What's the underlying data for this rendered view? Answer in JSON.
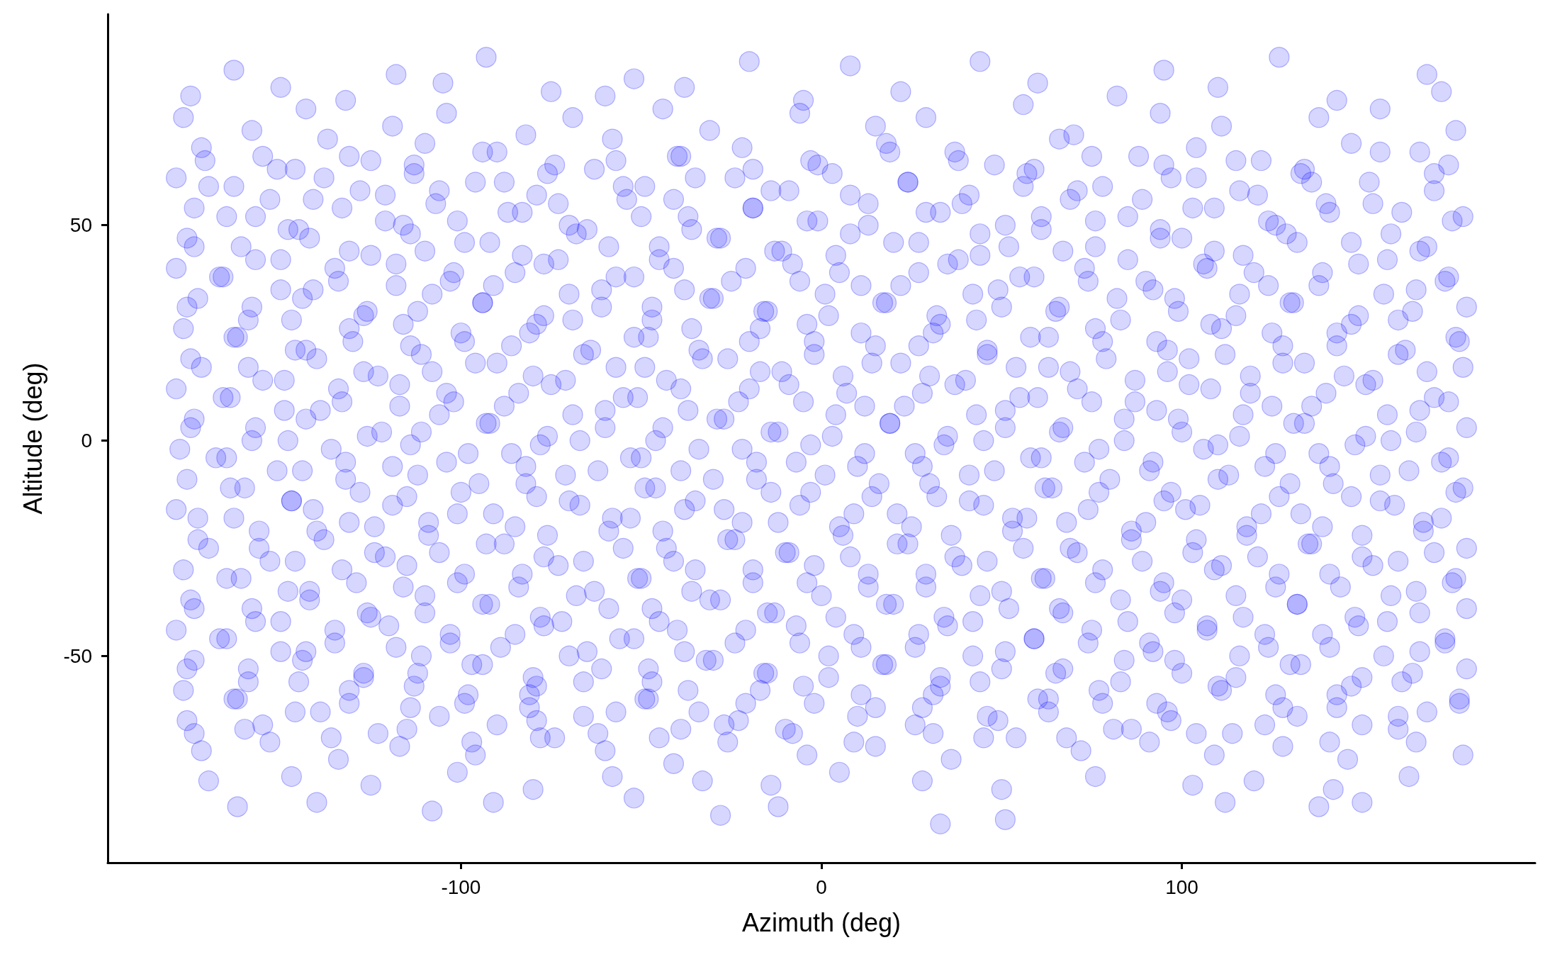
{
  "chart_data": {
    "type": "scatter",
    "xlabel": "Azimuth (deg)",
    "ylabel": "Altitude (deg)",
    "color": "#0000ff",
    "marker": "circle",
    "xlim": [
      -198,
      198
    ],
    "ylim": [
      -98,
      99
    ],
    "xticks": [
      -100,
      0,
      100
    ],
    "yticks": [
      -50,
      0,
      50
    ],
    "x": [
      -163,
      -118,
      -93,
      -52,
      -20,
      8,
      44,
      95,
      127,
      168,
      -175,
      -150,
      -132,
      -105,
      -75,
      -60,
      -38,
      -5,
      22,
      60,
      82,
      110,
      143,
      172,
      -177,
      -158,
      -143,
      -119,
      -104,
      -82,
      -69,
      -44,
      -31,
      -6,
      15,
      29,
      56,
      70,
      94,
      111,
      138,
      155,
      176,
      -172,
      -155,
      -137,
      -125,
      -110,
      -90,
      -74,
      -58,
      -40,
      -22,
      -3,
      18,
      37,
      48,
      66,
      88,
      104,
      122,
      147,
      166,
      -179,
      -163,
      -146,
      -128,
      -113,
      -96,
      -79,
      -63,
      -49,
      -35,
      -14,
      3,
      24,
      41,
      59,
      78,
      97,
      116,
      133,
      152,
      170,
      -174,
      -157,
      -141,
      -121,
      -107,
      -87,
      -70,
      -54,
      -37,
      -19,
      -1,
      13,
      33,
      51,
      69,
      85,
      103,
      124,
      140,
      161,
      178,
      -176,
      -161,
      -145,
      -131,
      -114,
      -99,
      -83,
      -65,
      -45,
      -29,
      -11,
      8,
      27,
      44,
      61,
      76,
      94,
      109,
      129,
      147,
      168,
      -179,
      -166,
      -150,
      -134,
      -118,
      -102,
      -91,
      -73,
      -57,
      -41,
      -25,
      -8,
      5,
      22,
      38,
      55,
      73,
      90,
      106,
      120,
      138,
      157,
      174,
      -173,
      -158,
      -141,
      -126,
      -108,
      -94,
      -77,
      -61,
      -47,
      -31,
      -16,
      1,
      17,
      32,
      49,
      66,
      82,
      99,
      116,
      131,
      149,
      165,
      179,
      -177,
      -162,
      -147,
      -130,
      -116,
      -100,
      -86,
      -69,
      -52,
      -36,
      -20,
      -4,
      11,
      27,
      43,
      58,
      76,
      93,
      108,
      125,
      143,
      160,
      176,
      -175,
      -159,
      -143,
      -127,
      -111,
      -96,
      -80,
      -64,
      -49,
      -33,
      -17,
      -2,
      14,
      30,
      46,
      63,
      79,
      96,
      112,
      128,
      145,
      162,
      178,
      -179,
      -164,
      -149,
      -133,
      -117,
      -104,
      -88,
      -71,
      -55,
      -39,
      -23,
      -9,
      7,
      23,
      40,
      55,
      71,
      87,
      102,
      119,
      136,
      153,
      170,
      -174,
      -157,
      -139,
      -122,
      -106,
      -92,
      -76,
      -60,
      -44,
      -27,
      -12,
      4,
      19,
      35,
      51,
      67,
      84,
      100,
      117,
      134,
      151,
      166,
      179,
      -178,
      -165,
      -148,
      -132,
      -114,
      -98,
      -82,
      -67,
      -50,
      -34,
      -18,
      -3,
      12,
      28,
      45,
      61,
      77,
      92,
      110,
      126,
      141,
      158,
      174,
      -176,
      -160,
      -144,
      -128,
      -112,
      -95,
      -79,
      -62,
      -46,
      -30,
      -14,
      1,
      16,
      32,
      48,
      64,
      80,
      97,
      113,
      130,
      147,
      163,
      178,
      -179,
      -163,
      -147,
      -131,
      -119,
      -101,
      -85,
      -70,
      -53,
      -38,
      -22,
      -6,
      9,
      25,
      41,
      57,
      74,
      90,
      105,
      122,
      139,
      155,
      172,
      -173,
      -156,
      -140,
      -124,
      -109,
      -93,
      -77,
      -59,
      -43,
      -26,
      -10,
      6,
      21,
      37,
      53,
      69,
      86,
      103,
      118,
      135,
      150,
      167,
      179,
      -177,
      -161,
      -146,
      -129,
      -115,
      -99,
      -84,
      -66,
      -51,
      -35,
      -19,
      -2,
      13,
      29,
      46,
      62,
      78,
      95,
      111,
      127,
      144,
      160,
      176,
      -175,
      -158,
      -142,
      -126,
      -110,
      -94,
      -78,
      -63,
      -47,
      -31,
      -15,
      0,
      18,
      34,
      50,
      66,
      83,
      98,
      115,
      132,
      148,
      165,
      179,
      -179,
      -165,
      -150,
      -135,
      -120,
      -103,
      -89,
      -72,
      -56,
      -40,
      -24,
      -7,
      9,
      26,
      42,
      59,
      75,
      91,
      107,
      123,
      141,
      157,
      173,
      -174,
      -159,
      -143,
      -127,
      -111,
      -97,
      -80,
      -65,
      -48,
      -32,
      -16,
      2,
      17,
      33,
      51,
      67,
      84,
      100,
      116,
      133,
      150,
      166,
      179,
      -177,
      -162,
      -145,
      -131,
      -113,
      -98,
      -81,
      -66,
      -49,
      -37,
      -21,
      -5,
      11,
      28,
      44,
      60,
      77,
      93,
      110,
      126,
      143,
      161,
      177,
      -176,
      -160,
      -139,
      -123,
      -106,
      -90,
      -74,
      -57,
      -39,
      -23,
      -8,
      10,
      26,
      45,
      63,
      81,
      97,
      114,
      132,
      150,
      168,
      -172,
      -153,
      -134,
      -117,
      -96,
      -78,
      -60,
      -41,
      -26,
      -4,
      15,
      36,
      54,
      72,
      91,
      109,
      128,
      146,
      165,
      178,
      -170,
      -147,
      -125,
      -101,
      -80,
      -58,
      -33,
      -14,
      5,
      28,
      50,
      76,
      103,
      120,
      142,
      163,
      -162,
      -140,
      -108,
      -91,
      -52,
      -28,
      -12,
      33,
      51,
      112,
      138,
      150,
      -171,
      -151,
      -131,
      -113,
      -94,
      -76,
      -57,
      -39,
      -19,
      -1,
      19,
      38,
      57,
      75,
      95,
      115,
      134,
      155,
      174,
      -170,
      -153,
      -138,
      -121,
      -106,
      -88,
      -73,
      -55,
      -41,
      -24,
      -9,
      8,
      24,
      39,
      56,
      71,
      89,
      104,
      121,
      136,
      153,
      170,
      -165,
      -148,
      -133,
      -116,
      -101,
      -83,
      -68,
      -50,
      -36,
      -19,
      -4,
      13,
      29,
      44,
      61,
      76,
      94,
      109,
      126,
      141,
      158,
      175,
      -174,
      -157,
      -142,
      -125,
      -110,
      -92,
      -77,
      -59,
      -45,
      -28,
      -13,
      4,
      20,
      35,
      52,
      67,
      85,
      100,
      117,
      132,
      149,
      166,
      -167,
      -150,
      -135,
      -118,
      -103,
      -85,
      -70,
      -52,
      -38,
      -21,
      -6,
      11,
      27,
      42,
      59,
      74,
      92,
      107,
      124,
      139,
      156,
      173,
      -176,
      -159,
      -144,
      -127,
      -112,
      -94,
      -79,
      -61,
      -47,
      -30,
      -15,
      2,
      18,
      33,
      50,
      65,
      83,
      98,
      115,
      130,
      147,
      164,
      -163,
      -146,
      -131,
      -114,
      -99,
      -81,
      -66,
      -48,
      -34,
      -17,
      -2,
      15,
      31,
      46,
      63,
      78,
      96,
      111,
      128,
      143,
      160,
      177,
      -172,
      -155,
      -140,
      -123,
      -108,
      -90,
      -75,
      -57,
      -43,
      -26,
      -11,
      6,
      22,
      37,
      54,
      69,
      87,
      102,
      119,
      134,
      151,
      168,
      -166,
      -149,
      -134,
      -117,
      -102,
      -84,
      -69,
      -51,
      -37,
      -20,
      -5,
      12,
      28,
      43,
      60,
      75,
      93,
      108,
      125,
      140,
      157,
      174,
      -175,
      -158,
      -143,
      -126,
      -111,
      -93,
      -78,
      -60,
      -46,
      -29,
      -14,
      3,
      19,
      34,
      51,
      66,
      84,
      99,
      116,
      131,
      148,
      165,
      -168,
      -151,
      -136,
      -119,
      -104,
      -86,
      -71,
      -53,
      -39,
      -22,
      -7,
      10,
      26,
      41,
      58,
      73,
      91,
      106,
      123,
      138,
      155,
      172,
      -164,
      -147,
      -132,
      -115,
      -100,
      -82,
      -67,
      -49,
      -35,
      -18,
      -3,
      14,
      30,
      45,
      62,
      77,
      95,
      110,
      127,
      142,
      159,
      176,
      -173,
      -156,
      -141,
      -124,
      -109,
      -91,
      -76,
      -58,
      -44,
      -27,
      -12,
      5,
      21,
      36,
      53,
      68,
      86,
      101,
      118,
      133,
      150,
      167,
      -170,
      -153,
      -138,
      -121,
      -106,
      -88,
      -73,
      -55,
      -41,
      -24,
      -9,
      8,
      24,
      39,
      56,
      71,
      89,
      104,
      121,
      136,
      153,
      170,
      -165,
      -148,
      -133,
      -116,
      -101,
      -83,
      -68,
      -50,
      -36,
      -19,
      -4,
      13,
      29,
      44,
      61,
      76,
      94,
      109,
      126,
      141,
      158,
      175,
      -174,
      -157,
      -142,
      -125,
      -110,
      -92,
      -77,
      -59,
      -45,
      -28,
      -13,
      4,
      20,
      35,
      52,
      67,
      85,
      100,
      117,
      132,
      149,
      166,
      -167,
      -150,
      -135,
      -118,
      -103,
      -85,
      -70,
      -52,
      -38,
      -21,
      -6,
      11,
      27,
      42,
      59,
      74,
      92,
      107,
      124,
      139,
      156,
      173,
      -176,
      -159,
      -144,
      -127,
      -112,
      -94,
      -79,
      -61,
      -47,
      -30,
      -15,
      2,
      18,
      33,
      50,
      65,
      83,
      98,
      115,
      130,
      147,
      164,
      -163,
      -146,
      -131,
      -114,
      -99,
      -81,
      -66,
      -48,
      -34,
      -17,
      -2,
      15,
      31,
      46,
      63,
      78,
      96,
      111,
      128,
      143,
      160,
      177,
      -174,
      -155,
      -136,
      -115,
      -97,
      -79,
      -62,
      -45,
      -27,
      -10,
      9,
      31,
      49,
      68,
      86,
      104,
      123,
      141,
      160
    ],
    "values": [
      86,
      85,
      89,
      84,
      88,
      87,
      88,
      86,
      89,
      85,
      80,
      82,
      79,
      83,
      81,
      80,
      82,
      79,
      81,
      83,
      80,
      82,
      79,
      81,
      75,
      72,
      77,
      73,
      76,
      71,
      75,
      77,
      72,
      76,
      73,
      75,
      78,
      71,
      76,
      73,
      75,
      77,
      72,
      68,
      66,
      70,
      65,
      69,
      67,
      64,
      70,
      66,
      68,
      65,
      69,
      67,
      64,
      70,
      66,
      68,
      65,
      69,
      67,
      61,
      59,
      63,
      58,
      62,
      60,
      57,
      63,
      59,
      61,
      58,
      62,
      60,
      57,
      63,
      59,
      61,
      58,
      62,
      60,
      62,
      54,
      52,
      56,
      51,
      55,
      53,
      50,
      56,
      52,
      54,
      51,
      55,
      53,
      50,
      56,
      52,
      54,
      51,
      55,
      53,
      52,
      47,
      45,
      49,
      44,
      48,
      46,
      43,
      49,
      45,
      47,
      44,
      48,
      46,
      43,
      49,
      45,
      47,
      44,
      48,
      46,
      45,
      40,
      38,
      42,
      37,
      41,
      39,
      36,
      42,
      38,
      40,
      37,
      41,
      39,
      36,
      42,
      38,
      40,
      37,
      41,
      39,
      36,
      42,
      38,
      33,
      31,
      35,
      30,
      34,
      32,
      29,
      35,
      31,
      33,
      30,
      34,
      32,
      29,
      35,
      31,
      33,
      30,
      34,
      32,
      29,
      35,
      31,
      26,
      24,
      28,
      23,
      27,
      25,
      22,
      28,
      24,
      26,
      23,
      27,
      25,
      22,
      28,
      24,
      26,
      23,
      27,
      25,
      22,
      28,
      24,
      19,
      17,
      21,
      16,
      20,
      18,
      15,
      21,
      17,
      19,
      16,
      20,
      18,
      15,
      21,
      17,
      19,
      16,
      20,
      18,
      15,
      21,
      17,
      12,
      10,
      14,
      9,
      13,
      11,
      8,
      14,
      10,
      12,
      9,
      13,
      11,
      8,
      14,
      10,
      12,
      9,
      13,
      11,
      8,
      14,
      10,
      5,
      3,
      7,
      2,
      6,
      4,
      1,
      7,
      3,
      5,
      2,
      6,
      4,
      1,
      7,
      3,
      5,
      2,
      6,
      4,
      1,
      7,
      3,
      -2,
      -4,
      0,
      -5,
      -1,
      -3,
      -6,
      0,
      -4,
      -2,
      -5,
      -1,
      -3,
      -6,
      0,
      -4,
      -2,
      -5,
      -1,
      -3,
      -6,
      0,
      -4,
      -9,
      -11,
      -7,
      -12,
      -8,
      -10,
      -13,
      -7,
      -11,
      -9,
      -12,
      -8,
      -10,
      -13,
      -7,
      -11,
      -9,
      -12,
      -8,
      -10,
      -13,
      -7,
      -11,
      -16,
      -18,
      -14,
      -19,
      -15,
      -17,
      -20,
      -14,
      -18,
      -16,
      -19,
      -15,
      -17,
      -20,
      -14,
      -18,
      -16,
      -19,
      -15,
      -17,
      -20,
      -14,
      -18,
      -23,
      -25,
      -21,
      -26,
      -22,
      -24,
      -27,
      -21,
      -25,
      -23,
      -26,
      -22,
      -24,
      -27,
      -21,
      -25,
      -23,
      -26,
      -22,
      -24,
      -27,
      -21,
      -25,
      -30,
      -32,
      -28,
      -33,
      -29,
      -31,
      -34,
      -28,
      -32,
      -30,
      -33,
      -29,
      -31,
      -34,
      -28,
      -32,
      -30,
      -33,
      -29,
      -31,
      -34,
      -28,
      -32,
      -37,
      -39,
      -35,
      -40,
      -36,
      -38,
      -41,
      -35,
      -39,
      -37,
      -40,
      -36,
      -38,
      -41,
      -35,
      -39,
      -37,
      -40,
      -36,
      -38,
      -41,
      -35,
      -39,
      -44,
      -46,
      -42,
      -47,
      -43,
      -45,
      -48,
      -42,
      -46,
      -44,
      -47,
      -43,
      -45,
      -48,
      -42,
      -46,
      -44,
      -47,
      -43,
      -45,
      -48,
      -42,
      -46,
      -51,
      -53,
      -49,
      -54,
      -50,
      -52,
      -55,
      -49,
      -53,
      -51,
      -54,
      -50,
      -52,
      -55,
      -49,
      -53,
      -51,
      -54,
      -50,
      -52,
      -55,
      -49,
      -53,
      -58,
      -60,
      -56,
      -61,
      -57,
      -59,
      -62,
      -56,
      -60,
      -58,
      -61,
      -57,
      -59,
      -62,
      -56,
      -60,
      -58,
      -61,
      -57,
      -59,
      -62,
      -56,
      -60,
      -65,
      -67,
      -63,
      -68,
      -64,
      -66,
      -69,
      -63,
      -67,
      -65,
      -68,
      -64,
      -66,
      -69,
      -63,
      -67,
      -65,
      -68,
      -64,
      -66,
      -63,
      -72,
      -70,
      -74,
      -71,
      -73,
      -69,
      -72,
      -75,
      -70,
      -73,
      -71,
      -74,
      -69,
      -72,
      -70,
      -73,
      -71,
      -74,
      -70,
      -73,
      -79,
      -78,
      -80,
      -77,
      -81,
      -78,
      -79,
      -80,
      -77,
      -79,
      -81,
      -78,
      -80,
      -79,
      -81,
      -78,
      -85,
      -84,
      -86,
      -84,
      -83,
      -87,
      -85,
      -89,
      -88,
      -84,
      -85,
      -84,
      65,
      63,
      66,
      64,
      67,
      62,
      65,
      66,
      63,
      64,
      67,
      65,
      62,
      66,
      64,
      65,
      63,
      67,
      64,
      59,
      56,
      61,
      57,
      58,
      60,
      55,
      59,
      56,
      61,
      58,
      57,
      60,
      55,
      59,
      58,
      56,
      61,
      57,
      60,
      55,
      58,
      52,
      49,
      54,
      50,
      51,
      53,
      48,
      52,
      49,
      54,
      51,
      50,
      53,
      48,
      52,
      51,
      49,
      54,
      50,
      53,
      48,
      51,
      45,
      42,
      47,
      43,
      44,
      46,
      41,
      45,
      42,
      47,
      44,
      43,
      46,
      41,
      45,
      44,
      42,
      47,
      43,
      46,
      41,
      44,
      38,
      35,
      40,
      36,
      37,
      39,
      34,
      38,
      35,
      40,
      37,
      36,
      39,
      34,
      38,
      37,
      35,
      40,
      36,
      39,
      34,
      37,
      31,
      28,
      33,
      29,
      30,
      32,
      27,
      31,
      28,
      33,
      30,
      29,
      32,
      27,
      31,
      30,
      28,
      33,
      29,
      32,
      27,
      30,
      24,
      21,
      26,
      22,
      23,
      25,
      20,
      24,
      21,
      26,
      23,
      22,
      25,
      20,
      24,
      23,
      21,
      26,
      22,
      25,
      20,
      23,
      17,
      14,
      19,
      15,
      16,
      18,
      13,
      17,
      14,
      19,
      16,
      15,
      18,
      13,
      17,
      16,
      14,
      19,
      15,
      18,
      13,
      16,
      10,
      7,
      12,
      8,
      9,
      11,
      6,
      10,
      7,
      12,
      9,
      8,
      11,
      6,
      10,
      9,
      7,
      12,
      8,
      11,
      6,
      9,
      3,
      0,
      5,
      1,
      2,
      4,
      -1,
      3,
      0,
      5,
      2,
      1,
      4,
      -1,
      3,
      2,
      0,
      5,
      1,
      4,
      -1,
      2,
      -4,
      -7,
      -2,
      -6,
      -5,
      -3,
      -8,
      -4,
      -7,
      -2,
      -5,
      -6,
      -3,
      -8,
      -4,
      -5,
      -7,
      -2,
      -6,
      -3,
      -8,
      -5,
      -11,
      -14,
      -9,
      -13,
      -12,
      -10,
      -15,
      -11,
      -14,
      -9,
      -12,
      -13,
      -10,
      -15,
      -11,
      -12,
      -14,
      -9,
      -13,
      -10,
      -15,
      -12,
      -18,
      -21,
      -16,
      -20,
      -19,
      -17,
      -22,
      -18,
      -21,
      -16,
      -19,
      -20,
      -17,
      -22,
      -18,
      -19,
      -21,
      -16,
      -20,
      -17,
      -22,
      -19,
      -25,
      -28,
      -23,
      -27,
      -26,
      -24,
      -29,
      -25,
      -28,
      -23,
      -26,
      -27,
      -24,
      -29,
      -25,
      -26,
      -28,
      -23,
      -27,
      -24,
      -29,
      -26,
      -32,
      -35,
      -30,
      -34,
      -33,
      -31,
      -36,
      -32,
      -35,
      -30,
      -33,
      -34,
      -31,
      -36,
      -32,
      -33,
      -35,
      -30,
      -34,
      -31,
      -36,
      -33,
      -39,
      -42,
      -37,
      -41,
      -40,
      -38,
      -43,
      -39,
      -42,
      -37,
      -40,
      -41,
      -38,
      -43,
      -39,
      -40,
      -42,
      -37,
      -41,
      -38,
      -43,
      -40,
      -46,
      -49,
      -44,
      -48,
      -47,
      -45,
      -50,
      -46,
      -49,
      -44,
      -47,
      -48,
      -45,
      -50,
      -46,
      -47,
      -49,
      -44,
      -48,
      -45,
      -50,
      -47,
      -53,
      -56,
      -51,
      -55,
      -54,
      -52,
      -57,
      -53,
      -56,
      -51,
      -54,
      -55,
      -52,
      -57,
      -53,
      -54,
      -56,
      -51,
      -55,
      -52,
      -57,
      -54,
      -60,
      -63,
      -58,
      -62,
      -61,
      -59,
      -64,
      -60,
      -63,
      -58,
      -61,
      -62,
      -59,
      -64,
      -60,
      -61,
      -63,
      -58,
      -62,
      -59,
      -64,
      -61,
      -68,
      -66,
      -69,
      -67,
      -70,
      -65,
      -68,
      -69,
      -66,
      -67,
      -70,
      -68,
      -65,
      -69,
      -67,
      -68,
      -66,
      -70,
      -67
    ]
  }
}
